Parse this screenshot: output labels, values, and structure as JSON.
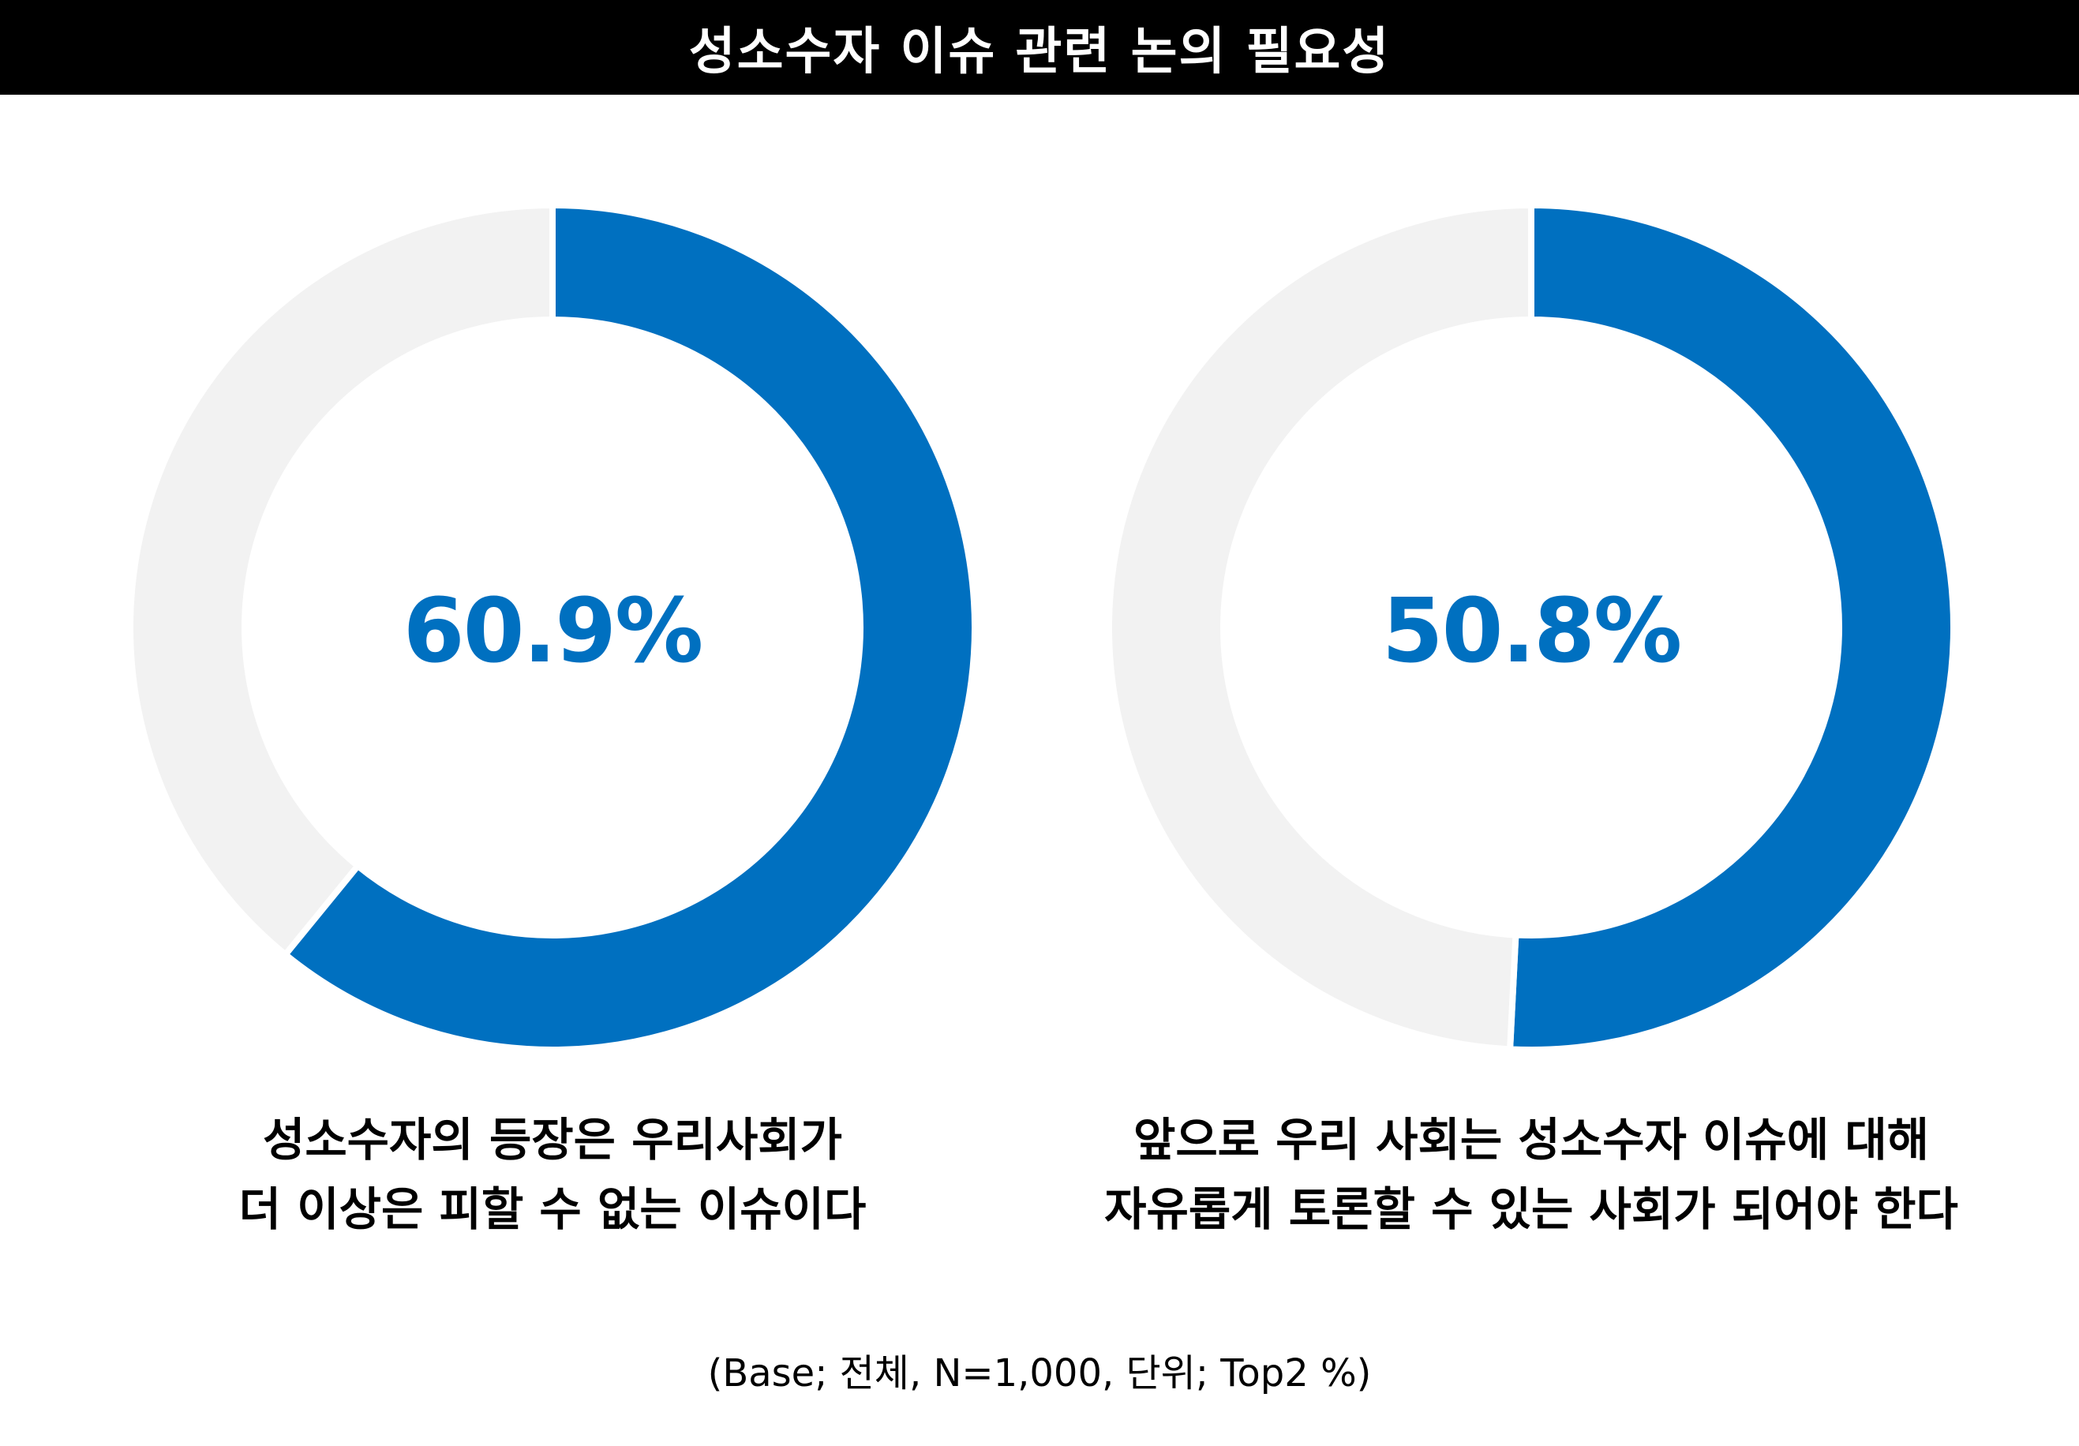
{
  "title": "성소수자 이슈 관련 논의 필요성",
  "footnote": "(Base; 전체, N=1,000, 단위; Top2 %)",
  "colors": {
    "accent": "#0070C0",
    "remainder": "#F2F2F2",
    "title_bg": "#000000",
    "title_text": "#FFFFFF"
  },
  "chart_data": [
    {
      "type": "pie",
      "variant": "donut",
      "value": 60.9,
      "value_label": "60.9%",
      "slices": [
        {
          "label": "Top2",
          "value": 60.9,
          "color": "#0070C0"
        },
        {
          "label": "",
          "value": 39.1,
          "color": "#F2F2F2"
        }
      ],
      "caption_lines": [
        "성소수자의 등장은 우리사회가",
        "더 이상은 피할 수 없는 이슈이다"
      ]
    },
    {
      "type": "pie",
      "variant": "donut",
      "value": 50.8,
      "value_label": "50.8%",
      "slices": [
        {
          "label": "Top2",
          "value": 50.8,
          "color": "#0070C0"
        },
        {
          "label": "",
          "value": 49.2,
          "color": "#F2F2F2"
        }
      ],
      "caption_lines": [
        "앞으로 우리 사회는 성소수자 이슈에 대해",
        "자유롭게 토론할 수 있는 사회가 되어야 한다"
      ]
    }
  ]
}
